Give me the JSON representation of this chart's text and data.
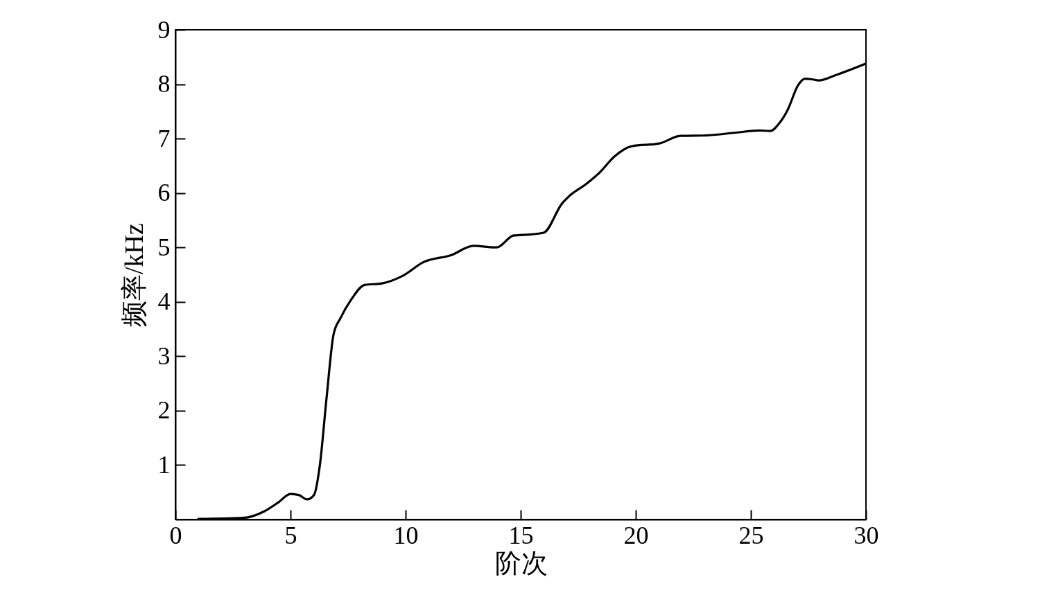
{
  "chart_data": {
    "type": "line",
    "xlabel": "阶次",
    "ylabel": "频率/kHz",
    "xlim": [
      0,
      30
    ],
    "xticks": [
      0,
      5,
      10,
      15,
      20,
      25,
      30
    ],
    "ylim": [
      0,
      9
    ],
    "yticks": [
      1,
      2,
      3,
      4,
      5,
      6,
      7,
      8,
      9
    ],
    "grid": false,
    "marker": "none",
    "line_style": "solid",
    "series": [
      {
        "color": "#000000",
        "x": [
          1.0,
          2.95,
          3.86,
          4.46,
          5.0,
          5.36,
          5.72,
          6.02,
          6.27,
          6.57,
          6.87,
          7.17,
          7.62,
          8.22,
          8.98,
          9.88,
          10.78,
          11.99,
          12.95,
          13.95,
          14.7,
          15.45,
          16.0,
          16.8,
          17.1,
          17.86,
          18.46,
          19.07,
          19.82,
          21.02,
          21.93,
          23.13,
          24.34,
          25.39,
          25.84,
          26.23,
          26.6,
          27.05,
          27.35,
          27.65,
          27.95,
          28.7,
          30.0
        ],
        "values": [
          0.01,
          0.03,
          0.15,
          0.31,
          0.47,
          0.45,
          0.37,
          0.45,
          0.98,
          2.25,
          3.4,
          3.7,
          4.03,
          4.31,
          4.34,
          4.48,
          4.73,
          4.86,
          5.03,
          5.0,
          5.22,
          5.24,
          5.27,
          5.81,
          5.94,
          6.17,
          6.39,
          6.67,
          6.86,
          6.91,
          7.05,
          7.06,
          7.11,
          7.15,
          7.14,
          7.28,
          7.53,
          7.98,
          8.1,
          8.09,
          8.07,
          8.17,
          8.38
        ]
      }
    ]
  }
}
